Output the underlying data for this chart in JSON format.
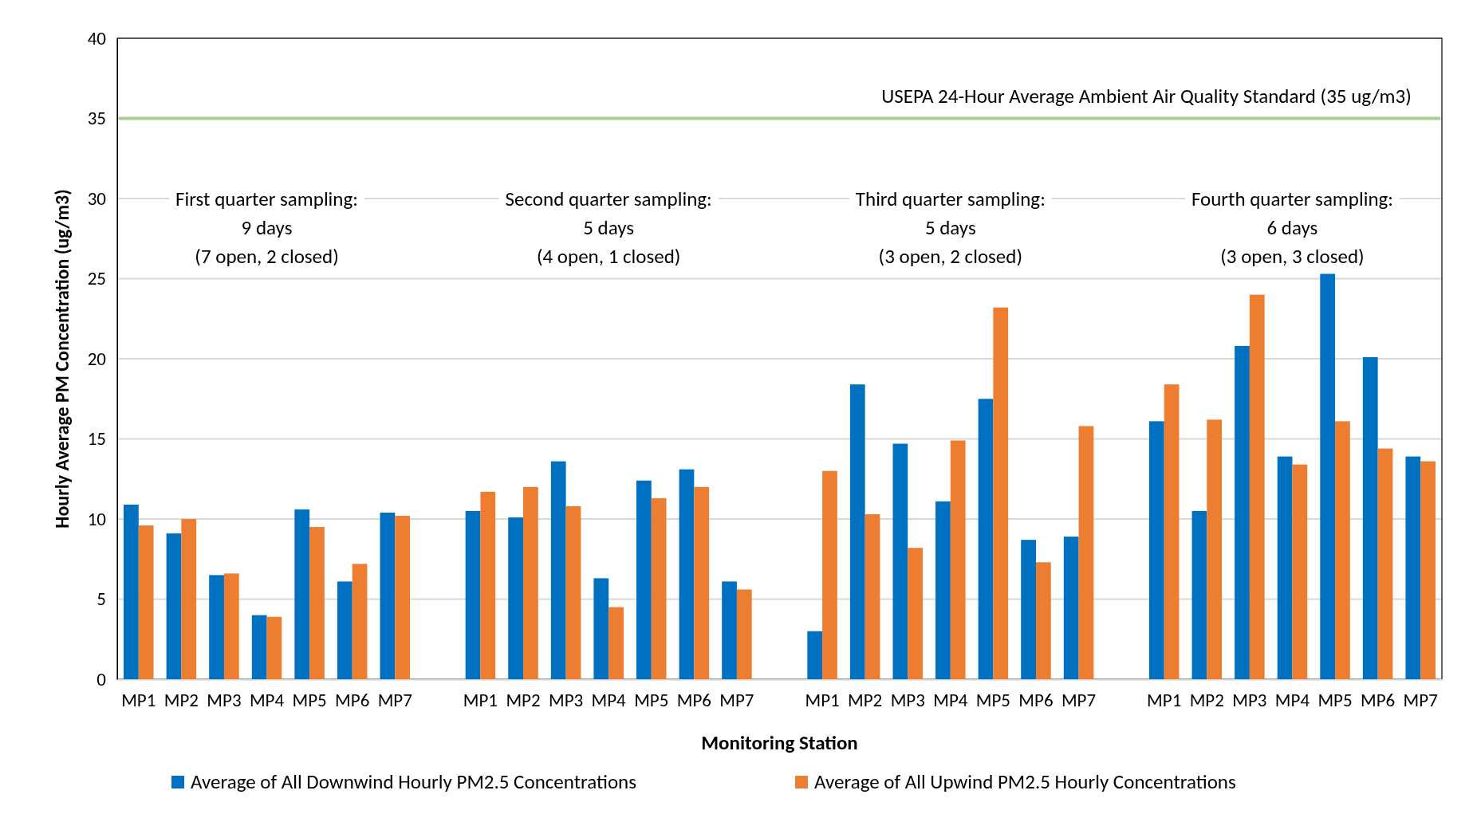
{
  "chart_data": {
    "type": "bar",
    "xlabel": "Monitoring Station",
    "ylabel": "Hourly Average PM Concentration (ug/m3)",
    "categories": [
      "MP1",
      "MP2",
      "MP3",
      "MP4",
      "MP5",
      "MP6",
      "MP7",
      null,
      "MP1",
      "MP2",
      "MP3",
      "MP4",
      "MP5",
      "MP6",
      "MP7",
      null,
      "MP1",
      "MP2",
      "MP3",
      "MP4",
      "MP5",
      "MP6",
      "MP7",
      null,
      "MP1",
      "MP2",
      "MP3",
      "MP4",
      "MP5",
      "MP6",
      "MP7"
    ],
    "series": [
      {
        "name": "Average of All Downwind Hourly PM2.5 Concentrations",
        "color": "#0070c0",
        "values": [
          10.9,
          9.1,
          6.5,
          4.0,
          10.6,
          6.1,
          10.4,
          null,
          10.5,
          10.1,
          13.6,
          6.3,
          12.4,
          13.1,
          6.1,
          null,
          3.0,
          18.4,
          14.7,
          11.1,
          17.5,
          8.7,
          8.9,
          null,
          16.1,
          10.5,
          20.8,
          13.9,
          25.3,
          20.1,
          13.9
        ]
      },
      {
        "name": "Average of All Upwind PM2.5 Hourly Concentrations",
        "color": "#ed7d31",
        "values": [
          9.6,
          10.0,
          6.6,
          3.9,
          9.5,
          7.2,
          10.2,
          null,
          11.7,
          12.0,
          10.8,
          4.5,
          11.3,
          12.0,
          5.6,
          null,
          13.0,
          10.3,
          8.2,
          14.9,
          23.2,
          7.3,
          15.8,
          null,
          18.4,
          16.2,
          24.0,
          13.4,
          16.1,
          14.4,
          13.6
        ]
      }
    ],
    "ylim": [
      0,
      40
    ],
    "yticks": [
      0,
      5,
      10,
      15,
      20,
      25,
      30,
      35,
      40
    ],
    "grid": "y",
    "legend": "bottom",
    "ref_lines": [
      {
        "axis": "y",
        "value": 35,
        "label": "USEPA 24-Hour Average Ambient Air Quality Standard (35 ug/m3)",
        "color": "#a9d08e"
      }
    ],
    "annotations": [
      "First quarter sampling:\n9 days\n(7 open, 2 closed)",
      "Second quarter sampling:\n5 days\n(4 open, 1 closed)",
      "Third quarter sampling:\n5 days\n(3 open, 2 closed)",
      "Fourth quarter sampling:\n6 days\n(3 open, 3 closed)"
    ]
  }
}
